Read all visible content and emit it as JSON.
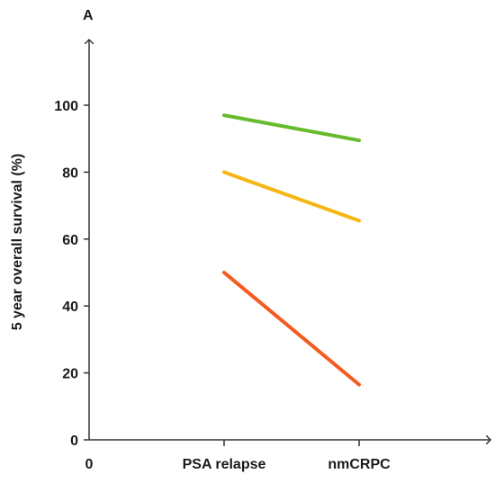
{
  "chart_data": {
    "type": "line",
    "panel_label": "A",
    "ylabel": "5 year overall survival (%)",
    "xlabel": "",
    "x_origin_label": "0",
    "categories": [
      "PSA relapse",
      "nmCRPC"
    ],
    "ylim": [
      0,
      120
    ],
    "yticks": [
      0,
      20,
      40,
      60,
      80,
      100
    ],
    "grid": false,
    "legend": "none",
    "series": [
      {
        "color": "#66bb2e",
        "values": [
          97,
          89.5
        ]
      },
      {
        "color": "#f5b613",
        "values": [
          80,
          65.5
        ]
      },
      {
        "color": "#f55a1e",
        "values": [
          50,
          16.5
        ]
      }
    ]
  }
}
